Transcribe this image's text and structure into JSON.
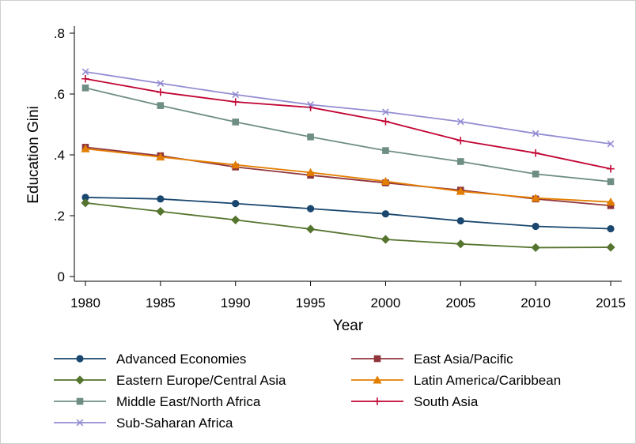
{
  "chart_data": {
    "type": "line",
    "title": "",
    "xlabel": "Year",
    "ylabel": "Education Gini",
    "x": [
      1980,
      1985,
      1990,
      1995,
      2000,
      2005,
      2010,
      2015
    ],
    "x_tick_labels": [
      "1980",
      "1985",
      "1990",
      "1995",
      "2000",
      "2005",
      "2010",
      "2015"
    ],
    "y_ticks": [
      0,
      0.2,
      0.4,
      0.6,
      0.8
    ],
    "y_tick_labels": [
      "0",
      ".2",
      ".4",
      ".6",
      ".8"
    ],
    "ylim": [
      0,
      0.8
    ],
    "grid": false,
    "legend_position": "bottom",
    "series": [
      {
        "name": "Advanced Economies",
        "color": "#1a476f",
        "marker": "circle",
        "values": [
          0.26,
          0.255,
          0.24,
          0.223,
          0.206,
          0.183,
          0.165,
          0.157
        ]
      },
      {
        "name": "East Asia/Pacific",
        "color": "#90353b",
        "marker": "square",
        "values": [
          0.425,
          0.397,
          0.36,
          0.333,
          0.308,
          0.284,
          0.255,
          0.233
        ]
      },
      {
        "name": "Eastern Europe/Central Asia",
        "color": "#55752f",
        "marker": "diamond",
        "values": [
          0.242,
          0.214,
          0.186,
          0.156,
          0.122,
          0.107,
          0.095,
          0.096
        ]
      },
      {
        "name": "Latin America/Caribbean",
        "color": "#e37e00",
        "marker": "triangle",
        "values": [
          0.42,
          0.393,
          0.367,
          0.342,
          0.313,
          0.28,
          0.258,
          0.245
        ]
      },
      {
        "name": "Middle East/North Africa",
        "color": "#6e8e84",
        "marker": "square",
        "values": [
          0.62,
          0.562,
          0.508,
          0.459,
          0.414,
          0.378,
          0.337,
          0.312
        ]
      },
      {
        "name": "South Asia",
        "color": "#c10534",
        "marker": "plus",
        "values": [
          0.65,
          0.606,
          0.574,
          0.556,
          0.51,
          0.447,
          0.406,
          0.354
        ]
      },
      {
        "name": "Sub-Saharan Africa",
        "color": "#938dd2",
        "marker": "x",
        "values": [
          0.673,
          0.635,
          0.598,
          0.565,
          0.541,
          0.509,
          0.47,
          0.436
        ]
      }
    ]
  }
}
